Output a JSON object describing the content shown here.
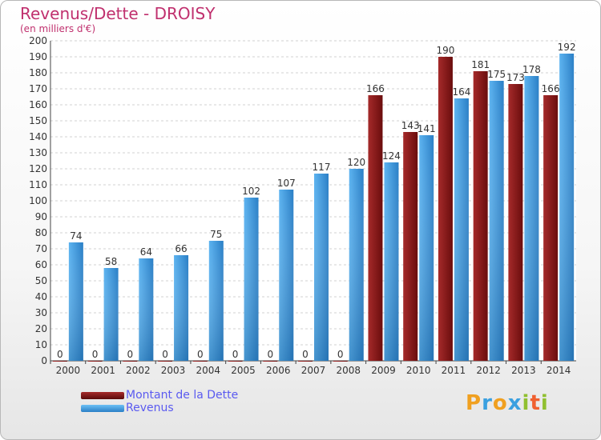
{
  "chart_data": {
    "type": "bar",
    "title": "Revenus/Dette - DROISY",
    "subtitle": "(en milliers d'€)",
    "categories": [
      "2000",
      "2001",
      "2002",
      "2003",
      "2004",
      "2005",
      "2006",
      "2007",
      "2008",
      "2009",
      "2010",
      "2011",
      "2012",
      "2013",
      "2014"
    ],
    "series": [
      {
        "name": "Montant de la Dette",
        "color": "#8b1a1a",
        "values": [
          0,
          0,
          0,
          0,
          0,
          0,
          0,
          0,
          0,
          166,
          143,
          190,
          181,
          173,
          166
        ]
      },
      {
        "name": "Revenus",
        "color": "#3a98e0",
        "values": [
          74,
          58,
          64,
          66,
          75,
          102,
          107,
          117,
          120,
          124,
          141,
          164,
          175,
          178,
          192
        ]
      }
    ],
    "ylim": [
      0,
      200
    ],
    "ytick_step": 10,
    "grid": true,
    "legend_position": "bottom-left"
  },
  "logo": {
    "letters": [
      "P",
      "r",
      "o",
      "x",
      "i",
      "t",
      "i"
    ],
    "colors": [
      "#f0a020",
      "#3aa0e0",
      "#f0a020",
      "#3aa0e0",
      "#90c030",
      "#f06030",
      "#90c030"
    ]
  }
}
